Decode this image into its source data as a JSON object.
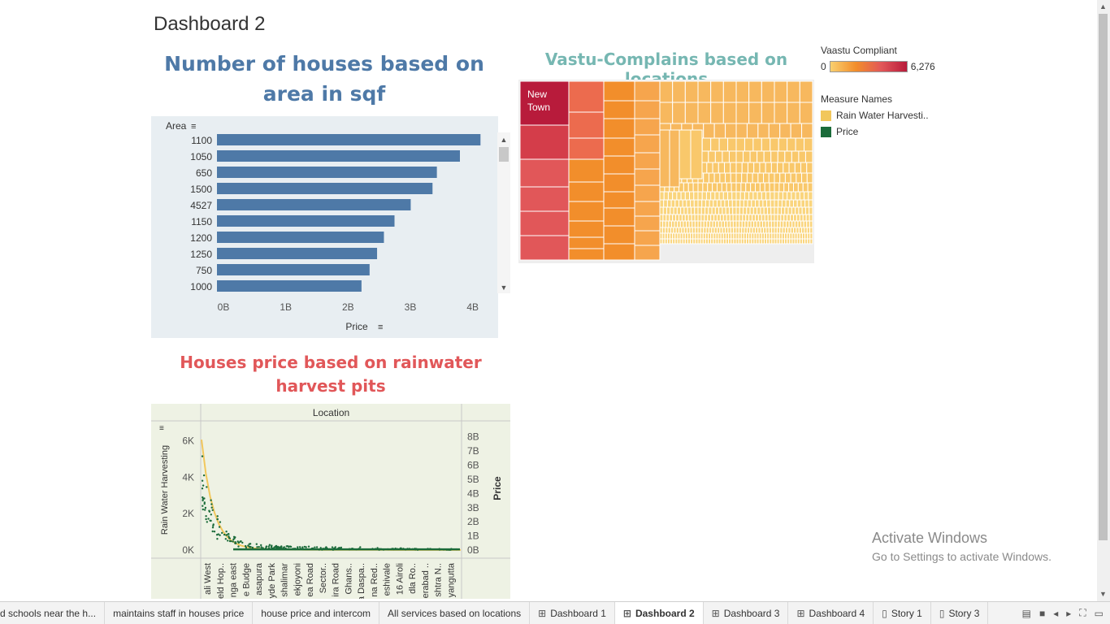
{
  "dashboard_title": "Dashboard 2",
  "bar_chart": {
    "title": "Number of houses based on area in sqf",
    "area_header": "Area",
    "price_header": "Price",
    "categories": [
      "1100",
      "1050",
      "650",
      "1500",
      "4527",
      "1150",
      "1200",
      "1250",
      "750",
      "1000"
    ],
    "values": [
      4.23,
      3.9,
      3.53,
      3.46,
      3.11,
      2.85,
      2.68,
      2.57,
      2.45,
      2.32
    ],
    "x_ticks": [
      "0B",
      "1B",
      "2B",
      "3B",
      "4B"
    ],
    "x_tick_values": [
      0,
      1,
      2,
      3,
      4
    ],
    "xlim": [
      0,
      4.5
    ],
    "color": "#4e79a7"
  },
  "treemap": {
    "title": "Vastu-Complains based on locations",
    "top_label": "New Town",
    "colors": [
      "#b81b3b",
      "#d43d4a",
      "#e15759",
      "#ec6b4e",
      "#f28e2b",
      "#f6a54d",
      "#f7b85e",
      "#f9c86b",
      "#fad57d"
    ]
  },
  "legend": {
    "vastu_title": "Vaastu Compliant",
    "vastu_min": "0",
    "vastu_max": "6,276",
    "measure_title": "Measure Names",
    "measure_items": [
      {
        "label": "Rain Water Harvesti..",
        "color": "#f2c75c"
      },
      {
        "label": "Price",
        "color": "#1b6b3a"
      }
    ]
  },
  "scatter_chart": {
    "title": "Houses price based on rainwater harvest pits",
    "location_header": "Location",
    "y_left_label": "Rain Water Harvesting",
    "y_right_label": "Price",
    "y_left_ticks": [
      "6K",
      "4K",
      "2K",
      "0K"
    ],
    "y_left_tick_values": [
      6000,
      4000,
      2000,
      0
    ],
    "y_left_lim": [
      0,
      6600
    ],
    "y_right_ticks": [
      "8B",
      "7B",
      "6B",
      "5B",
      "4B",
      "3B",
      "2B",
      "1B",
      "0B"
    ],
    "y_right_tick_values": [
      8,
      7,
      6,
      5,
      4,
      3,
      2,
      1,
      0
    ],
    "y_right_lim": [
      0,
      8.5
    ],
    "x_labels": [
      "ali West",
      "eld Hop..",
      "nga east",
      "e Budge",
      "asapura",
      "yde Park",
      "shalimar",
      "ekjoyoni",
      "ea Road",
      "Sector..",
      "ira Road",
      "Ghans..",
      "na Daspa..",
      "na Red..",
      "eshivale",
      "16 Airoli",
      "dla Ro..",
      "erabad ..",
      "shtra N..",
      "yangutta"
    ]
  },
  "watermark": {
    "title": "Activate Windows",
    "subtitle": "Go to Settings to activate Windows."
  },
  "tabs": [
    {
      "label": "d schools near the h...",
      "icon": ""
    },
    {
      "label": "maintains staff in houses price",
      "icon": ""
    },
    {
      "label": "house price and intercom",
      "icon": ""
    },
    {
      "label": "All services based on locations",
      "icon": ""
    },
    {
      "label": "Dashboard 1",
      "icon": "⊞"
    },
    {
      "label": "Dashboard 2",
      "icon": "⊞",
      "active": true
    },
    {
      "label": "Dashboard 3",
      "icon": "⊞"
    },
    {
      "label": "Dashboard 4",
      "icon": "⊞"
    },
    {
      "label": "Story 1",
      "icon": "▯"
    },
    {
      "label": "Story 3",
      "icon": "▯"
    }
  ]
}
